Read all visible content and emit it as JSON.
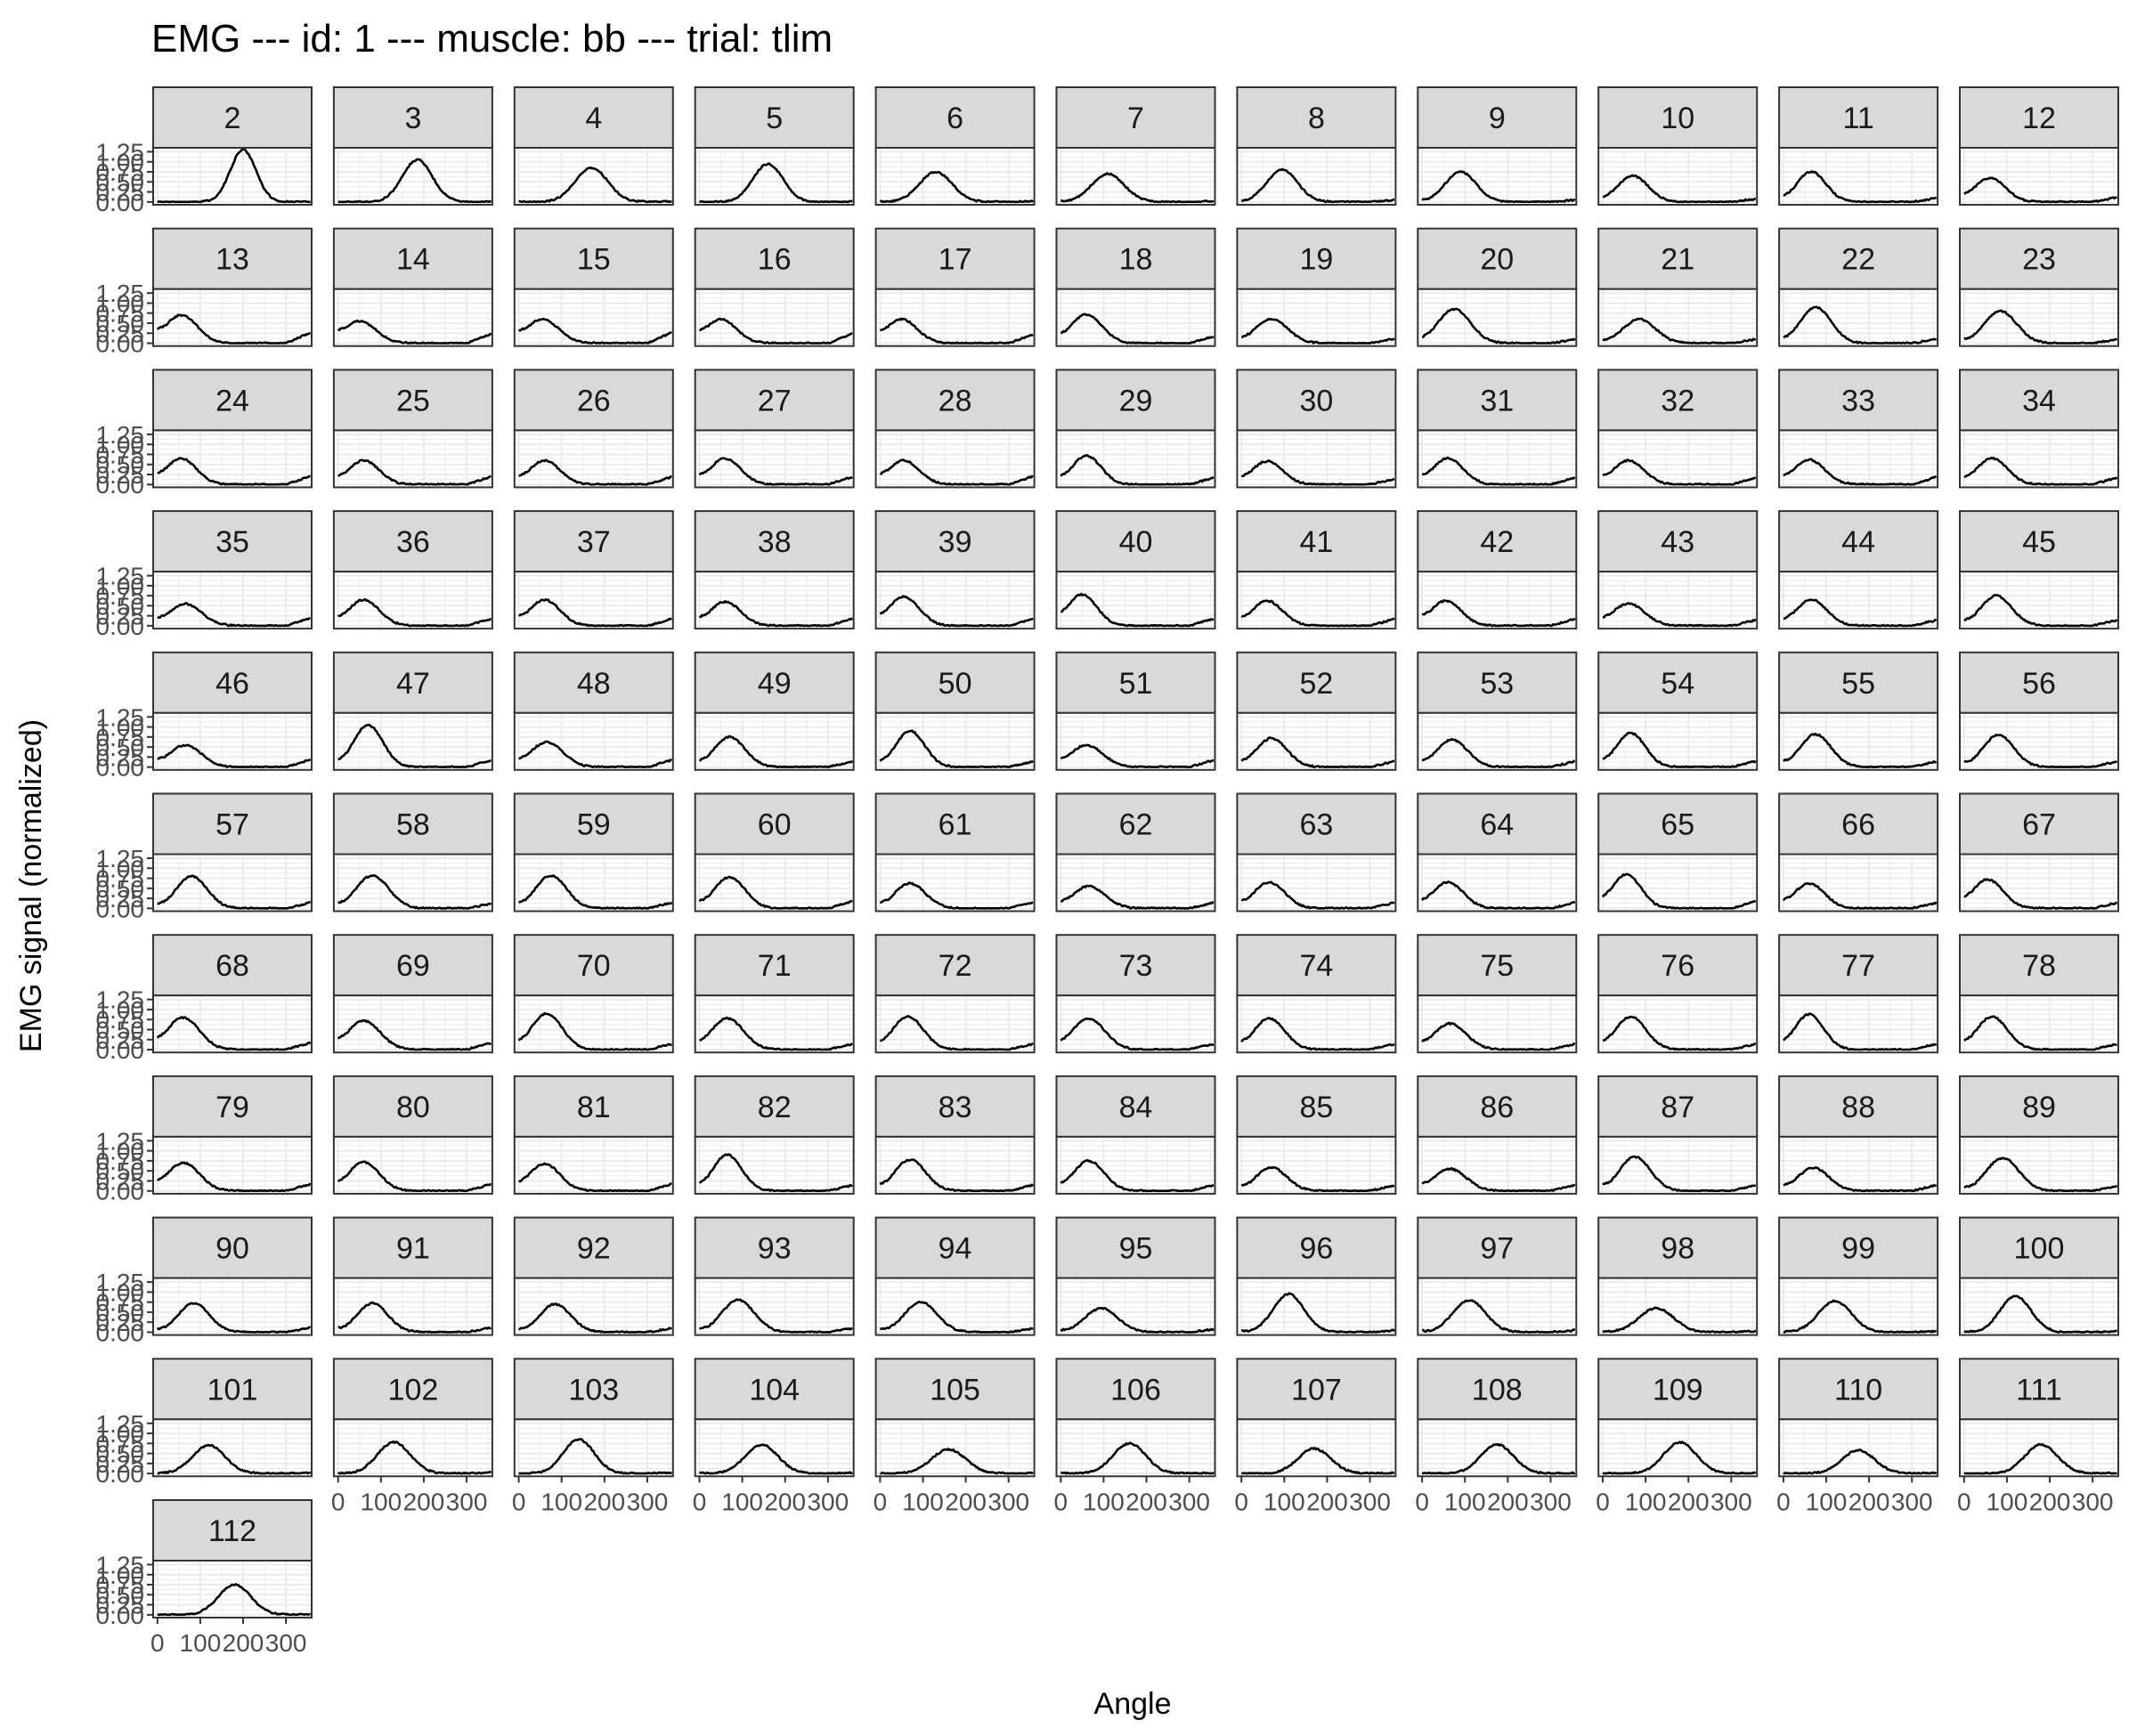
{
  "chart_data": {
    "type": "line",
    "title": "EMG --- id: 1 --- muscle: bb --- trial: tlim",
    "xlabel": "Angle",
    "ylabel": "EMG signal (normalized)",
    "facet_by": "cycle",
    "ncol": 11,
    "xlim": [
      -10,
      360
    ],
    "ylim": [
      -0.07,
      1.35
    ],
    "x_ticks": [
      0,
      100,
      200,
      300
    ],
    "x_tick_labels": [
      "0",
      "100",
      "200",
      "300"
    ],
    "y_ticks": [
      0,
      0.25,
      0.5,
      0.75,
      1.0,
      1.25
    ],
    "y_tick_labels": [
      "0.00",
      "0.25",
      "0.50",
      "0.75",
      "1.00",
      "1.25"
    ],
    "grid": true,
    "line_color": "#000000",
    "strip_fill": "#d9d9d9",
    "strip_border": "#333333",
    "panel_border": "#333333",
    "grid_color": "#ebebeb",
    "tick_label_color": "#4d4d4d",
    "panels": [
      {
        "label": "2",
        "peak_x": 200,
        "peak_y": 1.3,
        "width": 30,
        "tail": 0.0
      },
      {
        "label": "3",
        "peak_x": 185,
        "peak_y": 1.05,
        "width": 35,
        "tail": 0.0
      },
      {
        "label": "4",
        "peak_x": 170,
        "peak_y": 0.85,
        "width": 38,
        "tail": 0.01
      },
      {
        "label": "5",
        "peak_x": 160,
        "peak_y": 0.95,
        "width": 35,
        "tail": 0.01
      },
      {
        "label": "6",
        "peak_x": 130,
        "peak_y": 0.75,
        "width": 38,
        "tail": 0.02
      },
      {
        "label": "7",
        "peak_x": 110,
        "peak_y": 0.7,
        "width": 38,
        "tail": 0.03
      },
      {
        "label": "8",
        "peak_x": 95,
        "peak_y": 0.8,
        "width": 36,
        "tail": 0.05
      },
      {
        "label": "9",
        "peak_x": 90,
        "peak_y": 0.75,
        "width": 36,
        "tail": 0.05
      },
      {
        "label": "10",
        "peak_x": 70,
        "peak_y": 0.65,
        "width": 36,
        "tail": 0.08
      },
      {
        "label": "11",
        "peak_x": 65,
        "peak_y": 0.75,
        "width": 34,
        "tail": 0.1
      },
      {
        "label": "12",
        "peak_x": 60,
        "peak_y": 0.6,
        "width": 36,
        "tail": 0.12
      },
      {
        "label": "13",
        "peak_x": 55,
        "peak_y": 0.7,
        "width": 38,
        "tail": 0.28
      },
      {
        "label": "14",
        "peak_x": 50,
        "peak_y": 0.55,
        "width": 38,
        "tail": 0.25
      },
      {
        "label": "15",
        "peak_x": 55,
        "peak_y": 0.6,
        "width": 38,
        "tail": 0.28
      },
      {
        "label": "16",
        "peak_x": 50,
        "peak_y": 0.6,
        "width": 36,
        "tail": 0.25
      },
      {
        "label": "17",
        "peak_x": 50,
        "peak_y": 0.6,
        "width": 36,
        "tail": 0.22
      },
      {
        "label": "18",
        "peak_x": 60,
        "peak_y": 0.72,
        "width": 36,
        "tail": 0.18
      },
      {
        "label": "19",
        "peak_x": 70,
        "peak_y": 0.6,
        "width": 38,
        "tail": 0.12
      },
      {
        "label": "20",
        "peak_x": 75,
        "peak_y": 0.85,
        "width": 38,
        "tail": 0.1
      },
      {
        "label": "21",
        "peak_x": 85,
        "peak_y": 0.6,
        "width": 38,
        "tail": 0.1
      },
      {
        "label": "22",
        "peak_x": 75,
        "peak_y": 0.9,
        "width": 36,
        "tail": 0.1
      },
      {
        "label": "23",
        "peak_x": 85,
        "peak_y": 0.8,
        "width": 38,
        "tail": 0.1
      },
      {
        "label": "24",
        "peak_x": 55,
        "peak_y": 0.65,
        "width": 36,
        "tail": 0.22
      },
      {
        "label": "25",
        "peak_x": 60,
        "peak_y": 0.6,
        "width": 36,
        "tail": 0.2
      },
      {
        "label": "26",
        "peak_x": 60,
        "peak_y": 0.6,
        "width": 36,
        "tail": 0.2
      },
      {
        "label": "27",
        "peak_x": 60,
        "peak_y": 0.65,
        "width": 36,
        "tail": 0.2
      },
      {
        "label": "28",
        "peak_x": 55,
        "peak_y": 0.6,
        "width": 36,
        "tail": 0.22
      },
      {
        "label": "29",
        "peak_x": 60,
        "peak_y": 0.72,
        "width": 34,
        "tail": 0.18
      },
      {
        "label": "30",
        "peak_x": 60,
        "peak_y": 0.58,
        "width": 36,
        "tail": 0.15
      },
      {
        "label": "31",
        "peak_x": 60,
        "peak_y": 0.65,
        "width": 36,
        "tail": 0.18
      },
      {
        "label": "32",
        "peak_x": 60,
        "peak_y": 0.6,
        "width": 36,
        "tail": 0.18
      },
      {
        "label": "33",
        "peak_x": 60,
        "peak_y": 0.62,
        "width": 36,
        "tail": 0.2
      },
      {
        "label": "34",
        "peak_x": 65,
        "peak_y": 0.65,
        "width": 36,
        "tail": 0.18
      },
      {
        "label": "35",
        "peak_x": 65,
        "peak_y": 0.55,
        "width": 38,
        "tail": 0.2
      },
      {
        "label": "36",
        "peak_x": 60,
        "peak_y": 0.65,
        "width": 36,
        "tail": 0.18
      },
      {
        "label": "37",
        "peak_x": 60,
        "peak_y": 0.65,
        "width": 36,
        "tail": 0.18
      },
      {
        "label": "38",
        "peak_x": 60,
        "peak_y": 0.6,
        "width": 36,
        "tail": 0.18
      },
      {
        "label": "39",
        "peak_x": 55,
        "peak_y": 0.72,
        "width": 36,
        "tail": 0.18
      },
      {
        "label": "40",
        "peak_x": 50,
        "peak_y": 0.78,
        "width": 34,
        "tail": 0.18
      },
      {
        "label": "41",
        "peak_x": 60,
        "peak_y": 0.62,
        "width": 36,
        "tail": 0.18
      },
      {
        "label": "42",
        "peak_x": 55,
        "peak_y": 0.62,
        "width": 36,
        "tail": 0.18
      },
      {
        "label": "43",
        "peak_x": 60,
        "peak_y": 0.55,
        "width": 38,
        "tail": 0.15
      },
      {
        "label": "44",
        "peak_x": 65,
        "peak_y": 0.65,
        "width": 36,
        "tail": 0.15
      },
      {
        "label": "45",
        "peak_x": 75,
        "peak_y": 0.75,
        "width": 36,
        "tail": 0.15
      },
      {
        "label": "46",
        "peak_x": 65,
        "peak_y": 0.55,
        "width": 38,
        "tail": 0.2
      },
      {
        "label": "47",
        "peak_x": 70,
        "peak_y": 1.05,
        "width": 34,
        "tail": 0.18
      },
      {
        "label": "48",
        "peak_x": 65,
        "peak_y": 0.62,
        "width": 38,
        "tail": 0.18
      },
      {
        "label": "49",
        "peak_x": 70,
        "peak_y": 0.75,
        "width": 36,
        "tail": 0.15
      },
      {
        "label": "50",
        "peak_x": 70,
        "peak_y": 0.9,
        "width": 34,
        "tail": 0.15
      },
      {
        "label": "51",
        "peak_x": 60,
        "peak_y": 0.55,
        "width": 38,
        "tail": 0.18
      },
      {
        "label": "52",
        "peak_x": 70,
        "peak_y": 0.72,
        "width": 36,
        "tail": 0.15
      },
      {
        "label": "53",
        "peak_x": 70,
        "peak_y": 0.68,
        "width": 36,
        "tail": 0.15
      },
      {
        "label": "54",
        "peak_x": 65,
        "peak_y": 0.85,
        "width": 34,
        "tail": 0.15
      },
      {
        "label": "55",
        "peak_x": 75,
        "peak_y": 0.82,
        "width": 36,
        "tail": 0.15
      },
      {
        "label": "56",
        "peak_x": 80,
        "peak_y": 0.8,
        "width": 36,
        "tail": 0.15
      },
      {
        "label": "57",
        "peak_x": 80,
        "peak_y": 0.8,
        "width": 36,
        "tail": 0.15
      },
      {
        "label": "58",
        "peak_x": 80,
        "peak_y": 0.82,
        "width": 38,
        "tail": 0.12
      },
      {
        "label": "59",
        "peak_x": 75,
        "peak_y": 0.82,
        "width": 36,
        "tail": 0.15
      },
      {
        "label": "60",
        "peak_x": 70,
        "peak_y": 0.78,
        "width": 36,
        "tail": 0.18
      },
      {
        "label": "61",
        "peak_x": 70,
        "peak_y": 0.62,
        "width": 36,
        "tail": 0.15
      },
      {
        "label": "62",
        "peak_x": 65,
        "peak_y": 0.55,
        "width": 38,
        "tail": 0.15
      },
      {
        "label": "63",
        "peak_x": 65,
        "peak_y": 0.65,
        "width": 36,
        "tail": 0.15
      },
      {
        "label": "64",
        "peak_x": 60,
        "peak_y": 0.65,
        "width": 36,
        "tail": 0.15
      },
      {
        "label": "65",
        "peak_x": 55,
        "peak_y": 0.85,
        "width": 34,
        "tail": 0.18
      },
      {
        "label": "66",
        "peak_x": 60,
        "peak_y": 0.62,
        "width": 36,
        "tail": 0.15
      },
      {
        "label": "67",
        "peak_x": 55,
        "peak_y": 0.72,
        "width": 36,
        "tail": 0.15
      },
      {
        "label": "68",
        "peak_x": 60,
        "peak_y": 0.8,
        "width": 38,
        "tail": 0.18
      },
      {
        "label": "69",
        "peak_x": 60,
        "peak_y": 0.72,
        "width": 38,
        "tail": 0.18
      },
      {
        "label": "70",
        "peak_x": 65,
        "peak_y": 0.9,
        "width": 36,
        "tail": 0.15
      },
      {
        "label": "71",
        "peak_x": 65,
        "peak_y": 0.78,
        "width": 38,
        "tail": 0.15
      },
      {
        "label": "72",
        "peak_x": 65,
        "peak_y": 0.82,
        "width": 36,
        "tail": 0.15
      },
      {
        "label": "73",
        "peak_x": 65,
        "peak_y": 0.78,
        "width": 38,
        "tail": 0.15
      },
      {
        "label": "74",
        "peak_x": 65,
        "peak_y": 0.78,
        "width": 36,
        "tail": 0.15
      },
      {
        "label": "75",
        "peak_x": 65,
        "peak_y": 0.65,
        "width": 38,
        "tail": 0.15
      },
      {
        "label": "76",
        "peak_x": 65,
        "peak_y": 0.82,
        "width": 36,
        "tail": 0.15
      },
      {
        "label": "77",
        "peak_x": 60,
        "peak_y": 0.88,
        "width": 34,
        "tail": 0.15
      },
      {
        "label": "78",
        "peak_x": 65,
        "peak_y": 0.82,
        "width": 36,
        "tail": 0.15
      },
      {
        "label": "79",
        "peak_x": 60,
        "peak_y": 0.7,
        "width": 38,
        "tail": 0.18
      },
      {
        "label": "80",
        "peak_x": 60,
        "peak_y": 0.72,
        "width": 36,
        "tail": 0.18
      },
      {
        "label": "81",
        "peak_x": 60,
        "peak_y": 0.68,
        "width": 36,
        "tail": 0.18
      },
      {
        "label": "82",
        "peak_x": 65,
        "peak_y": 0.9,
        "width": 34,
        "tail": 0.15
      },
      {
        "label": "83",
        "peak_x": 70,
        "peak_y": 0.78,
        "width": 36,
        "tail": 0.15
      },
      {
        "label": "84",
        "peak_x": 65,
        "peak_y": 0.75,
        "width": 36,
        "tail": 0.15
      },
      {
        "label": "85",
        "peak_x": 70,
        "peak_y": 0.58,
        "width": 36,
        "tail": 0.15
      },
      {
        "label": "86",
        "peak_x": 65,
        "peak_y": 0.55,
        "width": 38,
        "tail": 0.15
      },
      {
        "label": "87",
        "peak_x": 75,
        "peak_y": 0.85,
        "width": 36,
        "tail": 0.15
      },
      {
        "label": "88",
        "peak_x": 70,
        "peak_y": 0.58,
        "width": 36,
        "tail": 0.15
      },
      {
        "label": "89",
        "peak_x": 90,
        "peak_y": 0.82,
        "width": 38,
        "tail": 0.12
      },
      {
        "label": "90",
        "peak_x": 85,
        "peak_y": 0.72,
        "width": 36,
        "tail": 0.12
      },
      {
        "label": "91",
        "peak_x": 80,
        "peak_y": 0.72,
        "width": 36,
        "tail": 0.12
      },
      {
        "label": "92",
        "peak_x": 85,
        "peak_y": 0.7,
        "width": 36,
        "tail": 0.1
      },
      {
        "label": "93",
        "peak_x": 90,
        "peak_y": 0.8,
        "width": 38,
        "tail": 0.1
      },
      {
        "label": "94",
        "peak_x": 95,
        "peak_y": 0.75,
        "width": 38,
        "tail": 0.1
      },
      {
        "label": "95",
        "peak_x": 95,
        "peak_y": 0.6,
        "width": 38,
        "tail": 0.08
      },
      {
        "label": "96",
        "peak_x": 110,
        "peak_y": 0.95,
        "width": 36,
        "tail": 0.05
      },
      {
        "label": "97",
        "peak_x": 110,
        "peak_y": 0.8,
        "width": 38,
        "tail": 0.05
      },
      {
        "label": "98",
        "peak_x": 125,
        "peak_y": 0.6,
        "width": 40,
        "tail": 0.03
      },
      {
        "label": "99",
        "peak_x": 120,
        "peak_y": 0.78,
        "width": 38,
        "tail": 0.03
      },
      {
        "label": "100",
        "peak_x": 120,
        "peak_y": 0.9,
        "width": 36,
        "tail": 0.03
      },
      {
        "label": "101",
        "peak_x": 120,
        "peak_y": 0.7,
        "width": 38,
        "tail": 0.02
      },
      {
        "label": "102",
        "peak_x": 130,
        "peak_y": 0.78,
        "width": 38,
        "tail": 0.02
      },
      {
        "label": "103",
        "peak_x": 140,
        "peak_y": 0.85,
        "width": 36,
        "tail": 0.02
      },
      {
        "label": "104",
        "peak_x": 145,
        "peak_y": 0.72,
        "width": 38,
        "tail": 0.02
      },
      {
        "label": "105",
        "peak_x": 160,
        "peak_y": 0.6,
        "width": 40,
        "tail": 0.01
      },
      {
        "label": "106",
        "peak_x": 160,
        "peak_y": 0.75,
        "width": 38,
        "tail": 0.01
      },
      {
        "label": "107",
        "peak_x": 170,
        "peak_y": 0.62,
        "width": 38,
        "tail": 0.01
      },
      {
        "label": "108",
        "peak_x": 175,
        "peak_y": 0.72,
        "width": 38,
        "tail": 0.01
      },
      {
        "label": "109",
        "peak_x": 180,
        "peak_y": 0.78,
        "width": 38,
        "tail": 0.01
      },
      {
        "label": "110",
        "peak_x": 175,
        "peak_y": 0.58,
        "width": 38,
        "tail": 0.01
      },
      {
        "label": "111",
        "peak_x": 180,
        "peak_y": 0.72,
        "width": 38,
        "tail": 0.01
      },
      {
        "label": "112",
        "peak_x": 180,
        "peak_y": 0.75,
        "width": 38,
        "tail": 0.01
      }
    ]
  }
}
